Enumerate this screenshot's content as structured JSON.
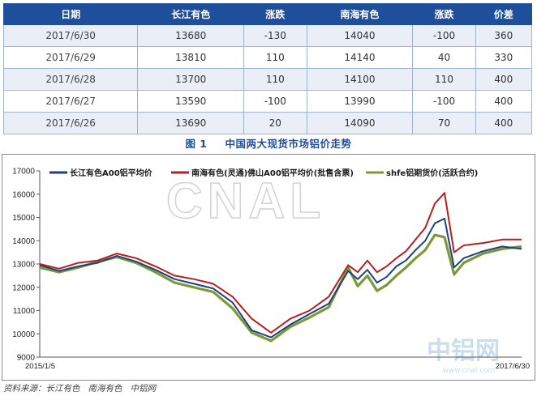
{
  "table": {
    "headers": [
      "日期",
      "长江有色",
      "涨跌",
      "南海有色",
      "涨跌",
      "价差"
    ],
    "rows": [
      [
        "2017/6/30",
        "13680",
        "-130",
        "14040",
        "-100",
        "360"
      ],
      [
        "2017/6/29",
        "13810",
        "110",
        "14140",
        "40",
        "330"
      ],
      [
        "2017/6/28",
        "13700",
        "110",
        "14100",
        "110",
        "400"
      ],
      [
        "2017/6/27",
        "13590",
        "-100",
        "13990",
        "-100",
        "400"
      ],
      [
        "2017/6/26",
        "13690",
        "20",
        "14090",
        "70",
        "400"
      ]
    ]
  },
  "caption": {
    "figure_no": "图 1",
    "title": "中国两大现货市场铝价走势"
  },
  "watermark": {
    "main": "CNAL",
    "logo": "中铝网",
    "site": "www.cnal.com"
  },
  "source_line": {
    "label": "资料来源：",
    "items": [
      "长江有色",
      "南海有色",
      "中铝网"
    ]
  },
  "colors": {
    "header_bg": "#1f4e9a",
    "changjiang": "#1f3f7f",
    "nanhai": "#b81e1e",
    "shfe": "#7a9a3a"
  },
  "chart_data": {
    "type": "line",
    "ylim": [
      9000,
      17000
    ],
    "yticks": [
      9000,
      10000,
      11000,
      12000,
      13000,
      14000,
      15000,
      16000,
      17000
    ],
    "x_start_label": "2015/1/5",
    "x_end_label": "2017/6/30",
    "grid": false,
    "legend": "top",
    "x_index": [
      0,
      4,
      8,
      12,
      16,
      20,
      24,
      28,
      32,
      36,
      40,
      44,
      48,
      52,
      56,
      60,
      64,
      66,
      68,
      70,
      72,
      74,
      76,
      78,
      80,
      82,
      84,
      86,
      88,
      92,
      96,
      100
    ],
    "series": [
      {
        "name": "长江有色A00铝平均价",
        "color": "#1f3f7f",
        "values": [
          12950,
          12700,
          12900,
          13050,
          13350,
          13100,
          12750,
          12350,
          12150,
          11950,
          11350,
          10150,
          9850,
          10400,
          10850,
          11300,
          12700,
          12350,
          12750,
          12200,
          12450,
          12900,
          13150,
          13600,
          14000,
          14750,
          14950,
          12850,
          13250,
          13550,
          13750,
          13650
        ]
      },
      {
        "name": "南海有色(灵通)佛山A00铝平均价(批售含票)",
        "color": "#b81e1e",
        "values": [
          13000,
          12800,
          13050,
          13150,
          13450,
          13250,
          12900,
          12500,
          12350,
          12150,
          11600,
          10650,
          10050,
          10650,
          11000,
          11600,
          12950,
          12650,
          13150,
          12650,
          12900,
          13250,
          13550,
          14050,
          14550,
          15600,
          16050,
          13500,
          13800,
          13900,
          14050,
          14050
        ]
      },
      {
        "name": "shfe铝期货价(活跃合约)",
        "color": "#7a9a3a",
        "values": [
          12850,
          12650,
          12850,
          13100,
          13300,
          13050,
          12650,
          12200,
          12000,
          11800,
          11100,
          10050,
          9700,
          10300,
          10700,
          11150,
          12850,
          12050,
          12500,
          11850,
          12100,
          12500,
          12850,
          13250,
          13600,
          14250,
          14150,
          12550,
          13050,
          13450,
          13650,
          13750
        ]
      }
    ]
  }
}
